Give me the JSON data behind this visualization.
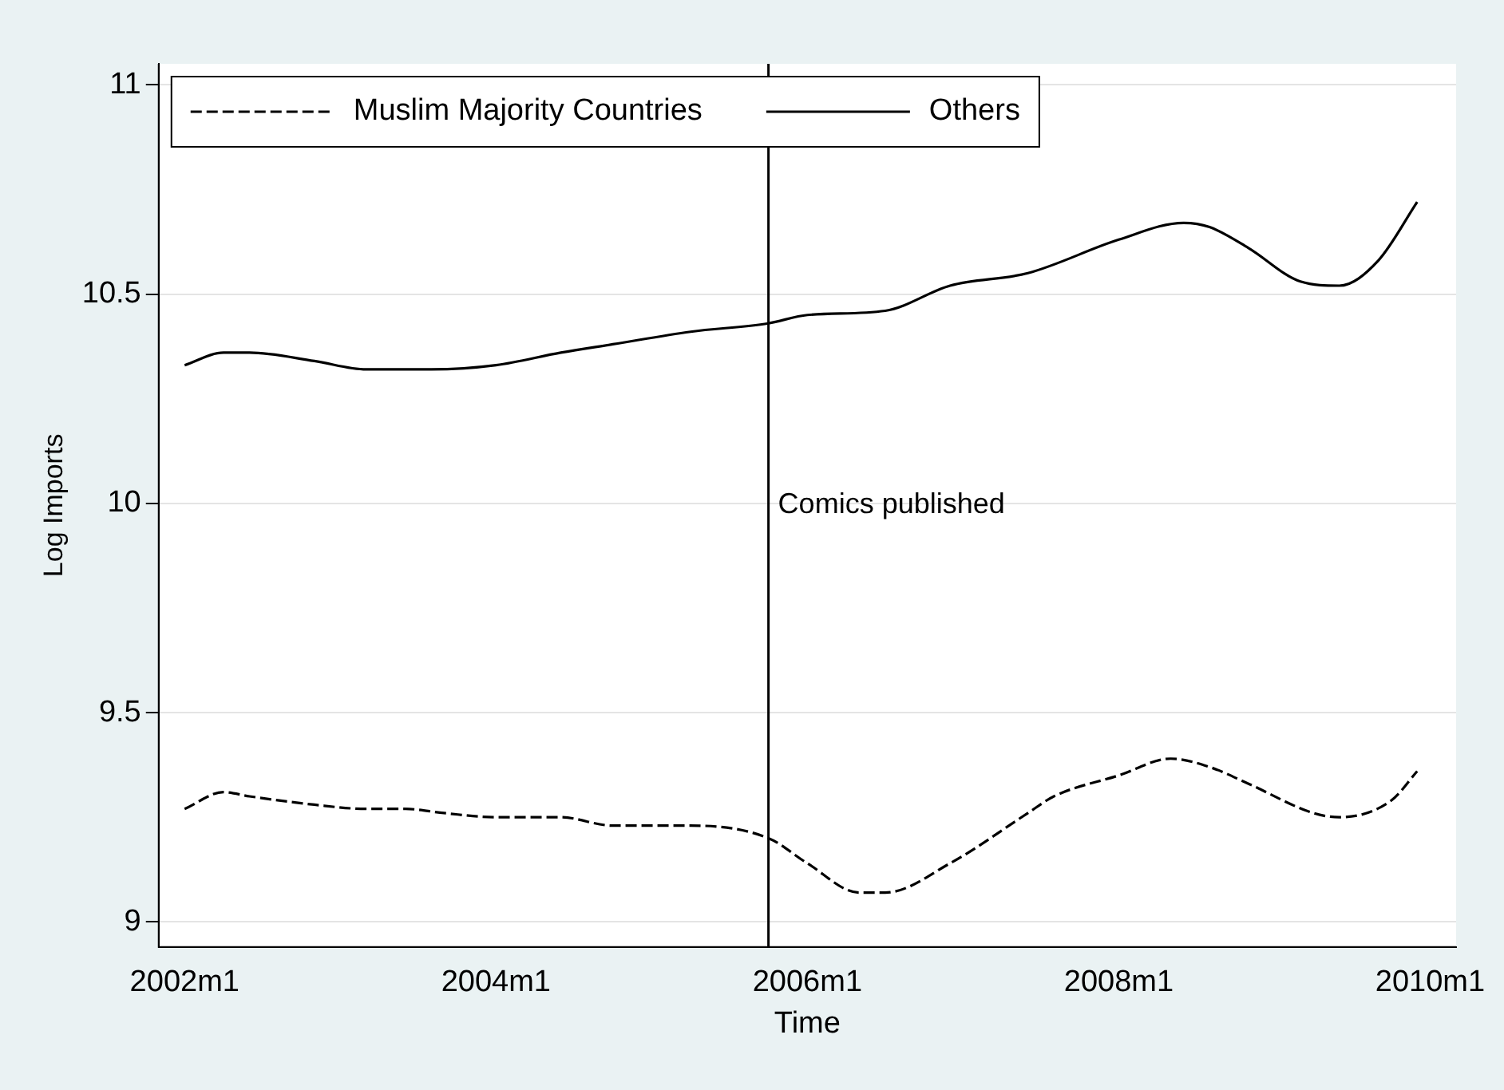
{
  "chart_data": {
    "type": "line",
    "xlabel": "Time",
    "ylabel": "Log Imports",
    "xlim": [
      "2001-11",
      "2010-03"
    ],
    "ylim": [
      8.94,
      11.05
    ],
    "xticks": [
      {
        "value": "2002-01",
        "label": "2002m1"
      },
      {
        "value": "2004-01",
        "label": "2004m1"
      },
      {
        "value": "2006-01",
        "label": "2006m1"
      },
      {
        "value": "2008-01",
        "label": "2008m1"
      },
      {
        "value": "2010-01",
        "label": "2010m1"
      }
    ],
    "yticks": [
      9,
      9.5,
      10,
      10.5,
      11
    ],
    "grid": "y",
    "legend": "top left",
    "marker": "none",
    "ref_lines": [
      {
        "axis": "x",
        "value": "2005-10",
        "label": "Comics published",
        "color": "#000000"
      }
    ],
    "series": [
      {
        "name": "Muslim Majority Countries",
        "color": "#000000",
        "line_style": "dashed",
        "x": [
          "2002-01",
          "2002-04",
          "2002-06",
          "2002-11",
          "2003-03",
          "2003-06",
          "2003-09",
          "2004-01",
          "2004-06",
          "2004-10",
          "2005-04",
          "2005-10",
          "2006-01",
          "2006-05",
          "2006-07",
          "2006-12",
          "2007-06",
          "2007-08",
          "2008-01",
          "2008-05",
          "2008-08",
          "2008-11",
          "2009-04",
          "2009-06",
          "2009-10",
          "2009-12"
        ],
        "values": [
          9.27,
          9.31,
          9.3,
          9.28,
          9.27,
          9.27,
          9.26,
          9.25,
          9.25,
          9.23,
          9.23,
          9.2,
          9.14,
          9.07,
          9.07,
          9.14,
          9.26,
          9.3,
          9.35,
          9.39,
          9.37,
          9.33,
          9.26,
          9.25,
          9.29,
          9.36
        ]
      },
      {
        "name": "Others",
        "color": "#000000",
        "line_style": "solid",
        "x": [
          "2002-01",
          "2002-04",
          "2002-06",
          "2002-11",
          "2003-03",
          "2003-08",
          "2004-01",
          "2004-06",
          "2004-10",
          "2005-04",
          "2005-10",
          "2006-01",
          "2006-07",
          "2006-12",
          "2007-06",
          "2008-01",
          "2008-06",
          "2008-08",
          "2008-11",
          "2009-03",
          "2009-06",
          "2009-09",
          "2009-12"
        ],
        "values": [
          10.33,
          10.36,
          10.36,
          10.34,
          10.32,
          10.32,
          10.33,
          10.36,
          10.38,
          10.41,
          10.43,
          10.45,
          10.46,
          10.52,
          10.55,
          10.63,
          10.67,
          10.66,
          10.61,
          10.53,
          10.52,
          10.58,
          10.72
        ]
      }
    ]
  }
}
